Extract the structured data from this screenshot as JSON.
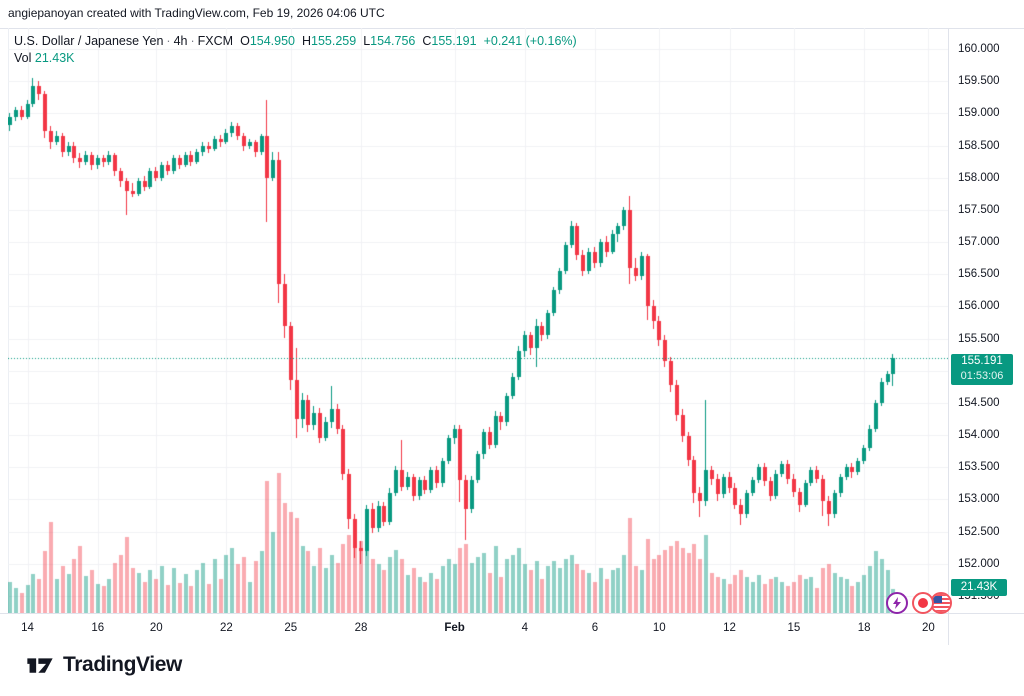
{
  "attribution": "angiepanoyan created with TradingView.com, Feb 19, 2026 04:06 UTC",
  "legend": {
    "symbol": "U.S. Dollar / Japanese Yen",
    "separator": "·",
    "interval": "4h",
    "exchange": "FXCM",
    "o_label": "O",
    "o_value": "154.950",
    "h_label": "H",
    "h_value": "155.259",
    "l_label": "L",
    "l_value": "154.756",
    "c_label": "C",
    "c_value": "155.191",
    "change": "+0.241 (+0.16%)",
    "vol_label": "Vol",
    "vol_value": "21.43K"
  },
  "price_axis": {
    "labels": [
      {
        "text": "160.000",
        "price": 160.0
      },
      {
        "text": "159.500",
        "price": 159.5
      },
      {
        "text": "159.000",
        "price": 159.0
      },
      {
        "text": "158.500",
        "price": 158.5
      },
      {
        "text": "158.000",
        "price": 158.0
      },
      {
        "text": "157.500",
        "price": 157.5
      },
      {
        "text": "157.000",
        "price": 157.0
      },
      {
        "text": "156.500",
        "price": 156.5
      },
      {
        "text": "156.000",
        "price": 156.0
      },
      {
        "text": "155.500",
        "price": 155.5
      },
      {
        "text": "154.500",
        "price": 154.5
      },
      {
        "text": "154.000",
        "price": 154.0
      },
      {
        "text": "153.500",
        "price": 153.5
      },
      {
        "text": "153.000",
        "price": 153.0
      },
      {
        "text": "152.500",
        "price": 152.5
      },
      {
        "text": "152.000",
        "price": 152.0
      },
      {
        "text": "151.500",
        "price": 151.5
      }
    ],
    "current_price_label": "155.191",
    "countdown": "01:53:06",
    "volume_badge": "21.43K"
  },
  "watermark": "TradingView",
  "icons": {
    "event_markers": [
      "lightning-event-icon",
      "japan-flag-icon",
      "us-flag-icon"
    ]
  },
  "colors": {
    "up": "#089981",
    "down": "#f23645",
    "vol_up": "rgba(8,153,129,0.45)",
    "vol_down": "rgba(242,54,69,0.42)",
    "grid": "#f0f2f5",
    "price_line": "#089981",
    "badge_bg": "#089981",
    "axis_text": "#131722",
    "purple_marker": "#8e24aa",
    "flag_ring": "#f2545e"
  },
  "chart_data": {
    "type": "candlestick+volume",
    "title": "U.S. Dollar / Japanese Yen, 4h, FXCM",
    "interval": "4h",
    "current_price": 155.191,
    "current_volume_k": 21.43,
    "gridline_step": 0.5,
    "visible_price_range": [
      151.23,
      160.33
    ],
    "x_ticks": [
      {
        "label": "14",
        "index": 3
      },
      {
        "label": "16",
        "index": 15
      },
      {
        "label": "20",
        "index": 25
      },
      {
        "label": "22",
        "index": 37
      },
      {
        "label": "25",
        "index": 48
      },
      {
        "label": "28",
        "index": 60
      },
      {
        "label": "Feb",
        "index": 76,
        "bold": true
      },
      {
        "label": "4",
        "index": 88
      },
      {
        "label": "6",
        "index": 100
      },
      {
        "label": "10",
        "index": 111
      },
      {
        "label": "12",
        "index": 123
      },
      {
        "label": "15",
        "index": 134
      },
      {
        "label": "18",
        "index": 146
      },
      {
        "label": "20",
        "index": 157
      }
    ],
    "ohlcv_columns": [
      "open",
      "high",
      "low",
      "close",
      "volume_k"
    ],
    "ohlcv": [
      [
        158.82,
        159.0,
        158.72,
        158.95,
        28
      ],
      [
        158.95,
        159.1,
        158.88,
        159.05,
        22
      ],
      [
        159.05,
        159.12,
        158.9,
        158.95,
        18
      ],
      [
        158.95,
        159.2,
        158.9,
        159.15,
        25
      ],
      [
        159.15,
        159.55,
        159.1,
        159.42,
        35
      ],
      [
        159.42,
        159.5,
        159.2,
        159.3,
        30
      ],
      [
        159.3,
        159.35,
        158.62,
        158.72,
        55
      ],
      [
        158.72,
        158.8,
        158.45,
        158.55,
        81
      ],
      [
        158.55,
        158.72,
        158.5,
        158.65,
        30
      ],
      [
        158.65,
        158.7,
        158.32,
        158.4,
        42
      ],
      [
        158.4,
        158.56,
        158.35,
        158.5,
        35
      ],
      [
        158.5,
        158.55,
        158.22,
        158.3,
        48
      ],
      [
        158.3,
        158.38,
        158.15,
        158.25,
        60
      ],
      [
        158.25,
        158.42,
        158.2,
        158.35,
        33
      ],
      [
        158.35,
        158.4,
        158.12,
        158.2,
        38
      ],
      [
        158.2,
        158.36,
        158.14,
        158.3,
        26
      ],
      [
        158.3,
        158.36,
        158.18,
        158.25,
        24
      ],
      [
        158.25,
        158.42,
        158.2,
        158.35,
        30
      ],
      [
        158.35,
        158.38,
        158.02,
        158.1,
        45
      ],
      [
        158.1,
        158.15,
        157.85,
        157.95,
        52
      ],
      [
        157.95,
        158.0,
        157.42,
        157.8,
        68
      ],
      [
        157.8,
        157.92,
        157.7,
        157.75,
        40
      ],
      [
        157.75,
        158.0,
        157.72,
        157.95,
        36
      ],
      [
        157.95,
        158.02,
        157.78,
        157.85,
        28
      ],
      [
        157.85,
        158.15,
        157.82,
        158.1,
        38
      ],
      [
        158.1,
        158.16,
        157.94,
        158.0,
        30
      ],
      [
        158.0,
        158.25,
        157.96,
        158.2,
        42
      ],
      [
        158.2,
        158.26,
        158.04,
        158.1,
        25
      ],
      [
        158.1,
        158.35,
        158.06,
        158.3,
        40
      ],
      [
        158.3,
        158.36,
        158.14,
        158.2,
        27
      ],
      [
        158.2,
        158.4,
        158.16,
        158.35,
        35
      ],
      [
        158.35,
        158.42,
        158.18,
        158.25,
        24
      ],
      [
        158.25,
        158.45,
        158.22,
        158.4,
        38
      ],
      [
        158.4,
        158.56,
        158.35,
        158.5,
        45
      ],
      [
        158.5,
        158.55,
        158.38,
        158.45,
        26
      ],
      [
        158.45,
        158.65,
        158.42,
        158.6,
        48
      ],
      [
        158.6,
        158.66,
        158.48,
        158.55,
        30
      ],
      [
        158.55,
        158.75,
        158.52,
        158.7,
        52
      ],
      [
        158.7,
        158.87,
        158.64,
        158.8,
        58
      ],
      [
        158.8,
        158.85,
        158.58,
        158.65,
        44
      ],
      [
        158.65,
        158.7,
        158.42,
        158.5,
        50
      ],
      [
        158.5,
        158.6,
        158.44,
        158.55,
        28
      ],
      [
        158.55,
        158.58,
        158.32,
        158.4,
        46
      ],
      [
        158.4,
        158.68,
        158.36,
        158.65,
        55
      ],
      [
        158.65,
        159.2,
        157.3,
        158.0,
        118
      ],
      [
        158.0,
        158.4,
        157.95,
        158.28,
        72
      ],
      [
        158.28,
        158.4,
        156.05,
        156.35,
        125
      ],
      [
        156.35,
        156.5,
        155.5,
        155.7,
        98
      ],
      [
        155.7,
        155.75,
        154.7,
        154.85,
        90
      ],
      [
        154.85,
        155.35,
        153.95,
        154.25,
        85
      ],
      [
        154.25,
        154.65,
        154.1,
        154.55,
        60
      ],
      [
        154.55,
        154.62,
        154.05,
        154.15,
        55
      ],
      [
        154.15,
        154.45,
        154.08,
        154.35,
        42
      ],
      [
        154.35,
        154.42,
        153.88,
        153.95,
        58
      ],
      [
        153.95,
        154.28,
        153.9,
        154.2,
        40
      ],
      [
        154.2,
        154.77,
        154.12,
        154.4,
        52
      ],
      [
        154.4,
        154.48,
        154.02,
        154.1,
        45
      ],
      [
        154.1,
        154.15,
        153.3,
        153.4,
        62
      ],
      [
        153.4,
        153.48,
        152.55,
        152.7,
        70
      ],
      [
        152.7,
        152.78,
        152.1,
        152.25,
        78
      ],
      [
        152.25,
        152.35,
        152.0,
        152.2,
        64
      ],
      [
        152.2,
        152.92,
        152.12,
        152.85,
        66
      ],
      [
        152.85,
        152.95,
        152.48,
        152.55,
        48
      ],
      [
        152.55,
        152.98,
        152.5,
        152.9,
        44
      ],
      [
        152.9,
        152.96,
        152.58,
        152.65,
        38
      ],
      [
        152.65,
        153.18,
        152.6,
        153.1,
        50
      ],
      [
        153.1,
        153.52,
        153.05,
        153.45,
        56
      ],
      [
        153.45,
        153.92,
        153.12,
        153.2,
        48
      ],
      [
        153.2,
        153.42,
        153.14,
        153.35,
        34
      ],
      [
        153.35,
        153.4,
        152.98,
        153.05,
        40
      ],
      [
        153.05,
        153.35,
        153.0,
        153.3,
        32
      ],
      [
        153.3,
        153.36,
        153.08,
        153.15,
        28
      ],
      [
        153.15,
        153.5,
        153.1,
        153.45,
        36
      ],
      [
        153.45,
        153.52,
        153.18,
        153.25,
        30
      ],
      [
        153.25,
        153.65,
        153.2,
        153.6,
        42
      ],
      [
        153.6,
        154.0,
        153.55,
        153.95,
        48
      ],
      [
        153.95,
        154.15,
        153.85,
        154.1,
        44
      ],
      [
        154.1,
        154.15,
        152.95,
        153.3,
        58
      ],
      [
        153.3,
        153.38,
        152.37,
        152.85,
        62
      ],
      [
        152.85,
        153.36,
        152.78,
        153.3,
        45
      ],
      [
        153.3,
        153.75,
        153.25,
        153.7,
        50
      ],
      [
        153.7,
        154.1,
        153.64,
        154.05,
        54
      ],
      [
        154.05,
        154.12,
        153.78,
        153.85,
        36
      ],
      [
        153.85,
        154.38,
        153.8,
        154.3,
        60
      ],
      [
        154.3,
        154.36,
        154.08,
        154.2,
        32
      ],
      [
        154.2,
        154.66,
        154.15,
        154.6,
        48
      ],
      [
        154.6,
        154.96,
        154.55,
        154.9,
        52
      ],
      [
        154.9,
        155.38,
        154.85,
        155.3,
        58
      ],
      [
        155.3,
        155.62,
        155.22,
        155.55,
        44
      ],
      [
        155.55,
        155.6,
        155.25,
        155.35,
        38
      ],
      [
        155.35,
        155.8,
        155.05,
        155.7,
        46
      ],
      [
        155.7,
        155.75,
        155.45,
        155.55,
        30
      ],
      [
        155.55,
        155.95,
        155.5,
        155.9,
        42
      ],
      [
        155.9,
        156.3,
        155.85,
        156.25,
        46
      ],
      [
        156.25,
        156.6,
        156.2,
        156.55,
        40
      ],
      [
        156.55,
        157.0,
        156.5,
        156.95,
        48
      ],
      [
        156.95,
        157.32,
        156.9,
        157.25,
        52
      ],
      [
        157.25,
        157.3,
        156.72,
        156.8,
        44
      ],
      [
        156.8,
        156.88,
        156.48,
        156.55,
        38
      ],
      [
        156.55,
        156.9,
        156.5,
        156.85,
        36
      ],
      [
        156.85,
        156.92,
        156.6,
        156.68,
        28
      ],
      [
        156.68,
        157.05,
        156.62,
        157.0,
        40
      ],
      [
        157.0,
        157.1,
        156.78,
        156.85,
        30
      ],
      [
        156.85,
        157.18,
        156.8,
        157.12,
        38
      ],
      [
        157.12,
        157.3,
        157.0,
        157.25,
        40
      ],
      [
        157.25,
        157.55,
        157.2,
        157.5,
        52
      ],
      [
        157.5,
        157.72,
        156.35,
        156.6,
        85
      ],
      [
        156.6,
        156.75,
        156.4,
        156.48,
        42
      ],
      [
        156.48,
        156.85,
        156.42,
        156.78,
        38
      ],
      [
        156.78,
        156.82,
        155.8,
        156.0,
        66
      ],
      [
        156.0,
        156.1,
        155.65,
        155.78,
        48
      ],
      [
        155.78,
        155.85,
        155.38,
        155.48,
        52
      ],
      [
        155.48,
        155.55,
        155.05,
        155.15,
        56
      ],
      [
        155.15,
        155.22,
        154.68,
        154.78,
        60
      ],
      [
        154.78,
        154.85,
        154.22,
        154.32,
        64
      ],
      [
        154.32,
        154.4,
        153.88,
        153.98,
        58
      ],
      [
        153.98,
        154.05,
        153.52,
        153.62,
        54
      ],
      [
        153.62,
        153.68,
        152.95,
        153.1,
        62
      ],
      [
        153.1,
        153.2,
        152.73,
        152.98,
        48
      ],
      [
        152.98,
        154.55,
        152.9,
        153.45,
        70
      ],
      [
        153.45,
        153.52,
        153.22,
        153.32,
        36
      ],
      [
        153.32,
        153.4,
        152.98,
        153.08,
        32
      ],
      [
        153.08,
        153.4,
        153.02,
        153.35,
        30
      ],
      [
        153.35,
        153.42,
        153.1,
        153.18,
        26
      ],
      [
        153.18,
        153.25,
        152.85,
        152.92,
        34
      ],
      [
        152.92,
        153.0,
        152.6,
        152.78,
        38
      ],
      [
        152.78,
        153.15,
        152.72,
        153.1,
        32
      ],
      [
        153.1,
        153.35,
        153.05,
        153.3,
        28
      ],
      [
        153.3,
        153.55,
        153.25,
        153.5,
        34
      ],
      [
        153.5,
        153.56,
        153.2,
        153.28,
        26
      ],
      [
        153.28,
        153.35,
        152.98,
        153.05,
        30
      ],
      [
        153.05,
        153.45,
        153.0,
        153.4,
        32
      ],
      [
        153.4,
        153.6,
        153.35,
        153.55,
        28
      ],
      [
        153.55,
        153.62,
        153.25,
        153.32,
        24
      ],
      [
        153.32,
        153.4,
        153.05,
        153.12,
        28
      ],
      [
        153.12,
        153.18,
        152.8,
        152.92,
        34
      ],
      [
        152.92,
        153.3,
        152.88,
        153.25,
        30
      ],
      [
        153.25,
        153.5,
        153.2,
        153.45,
        32
      ],
      [
        153.45,
        153.52,
        153.25,
        153.32,
        22
      ],
      [
        153.32,
        153.38,
        152.75,
        152.98,
        40
      ],
      [
        152.98,
        153.05,
        152.58,
        152.78,
        44
      ],
      [
        152.78,
        153.15,
        152.72,
        153.1,
        36
      ],
      [
        153.1,
        153.4,
        153.05,
        153.35,
        32
      ],
      [
        153.35,
        153.55,
        153.3,
        153.5,
        30
      ],
      [
        153.5,
        153.56,
        153.32,
        153.42,
        24
      ],
      [
        153.42,
        153.65,
        153.38,
        153.6,
        28
      ],
      [
        153.6,
        153.85,
        153.55,
        153.8,
        34
      ],
      [
        153.8,
        154.15,
        153.75,
        154.1,
        42
      ],
      [
        154.1,
        154.55,
        154.05,
        154.5,
        55
      ],
      [
        154.5,
        154.88,
        154.45,
        154.82,
        48
      ],
      [
        154.82,
        155.0,
        154.78,
        154.95,
        38
      ],
      [
        154.95,
        155.259,
        154.756,
        155.191,
        21.43
      ]
    ]
  }
}
